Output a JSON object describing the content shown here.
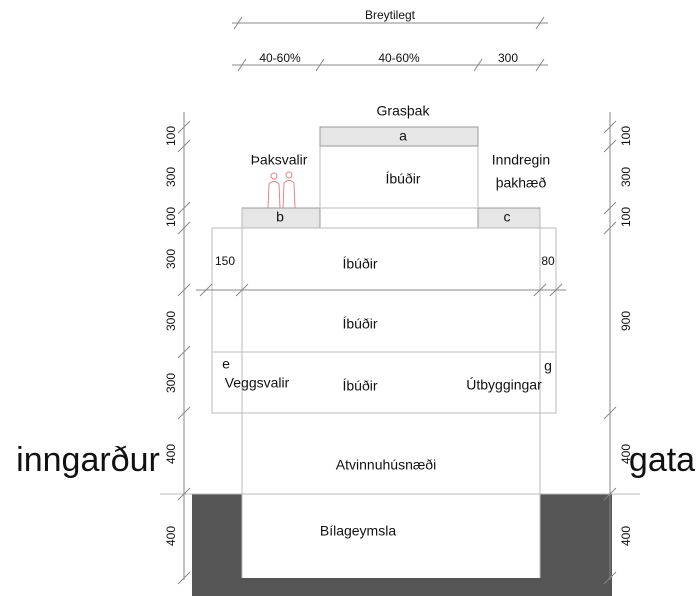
{
  "title_dimension": "Breytilegt",
  "widths": [
    "40-60%",
    "40-60%",
    300
  ],
  "roof": {
    "title": "Grasþak",
    "slab": "a"
  },
  "top_floor": {
    "left": "Þaksvalir",
    "middle": "Íbúðir",
    "right": [
      "Inndregin",
      "þakhæð"
    ]
  },
  "slabs": [
    "b",
    "c"
  ],
  "setbacks": [
    150,
    80
  ],
  "floors": [
    "Íbúðir",
    "Íbúðir",
    "Íbúðir"
  ],
  "balconies": {
    "left_key": "e",
    "left": "Veggsvalir",
    "right_key": "g",
    "right": "Útbyggingar"
  },
  "ground_floor": "Atvinnuhúsnæði",
  "basement": "Bílageymsla",
  "sides": [
    "inngarður",
    "gata"
  ],
  "left_heights": [
    100,
    300,
    100,
    300,
    300,
    300,
    400,
    400
  ],
  "right_heights": [
    100,
    300,
    100,
    900,
    400,
    400
  ]
}
